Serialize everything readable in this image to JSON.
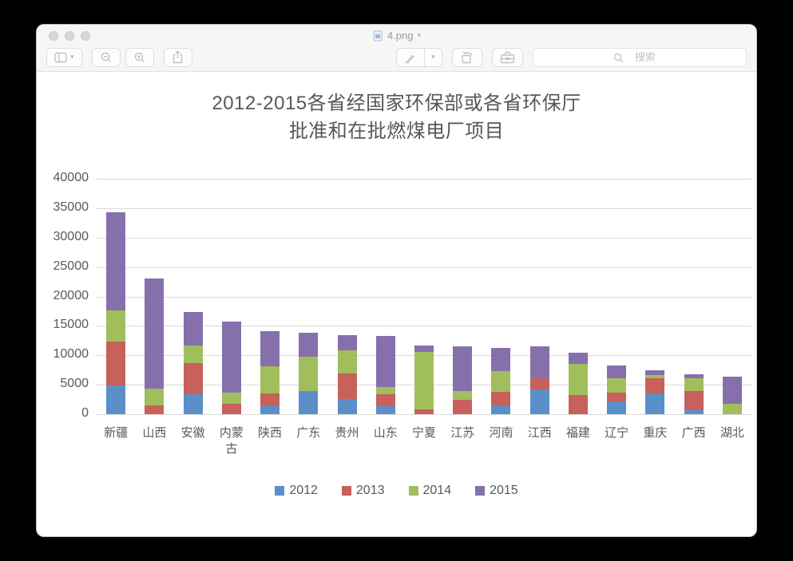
{
  "window": {
    "title": "4.png",
    "traffic_lights": {
      "close": "",
      "minimize": "",
      "zoom": ""
    },
    "toolbar": {
      "search_placeholder": "搜索"
    }
  },
  "chart_data": {
    "type": "bar",
    "stacked": true,
    "title": "2012-2015各省经国家环保部或各省环保厅批准和在批燃煤电厂项目",
    "title_line1": "2012-2015各省经国家环保部或各省环保厅",
    "title_line2": "批准和在批燃煤电厂项目",
    "categories": [
      "新疆",
      "山西",
      "安徽",
      "内蒙古",
      "陕西",
      "广东",
      "贵州",
      "山东",
      "宁夏",
      "江苏",
      "河南",
      "江西",
      "福建",
      "辽宁",
      "重庆",
      "广西",
      "湖北"
    ],
    "series": [
      {
        "name": "2012",
        "color": "#5B8FC9",
        "values": [
          4900,
          0,
          3400,
          0,
          1500,
          3900,
          2600,
          1400,
          0,
          0,
          1500,
          4200,
          0,
          2200,
          3500,
          700,
          0
        ]
      },
      {
        "name": "2013",
        "color": "#C8605B",
        "values": [
          7400,
          1500,
          5300,
          1800,
          2000,
          0,
          4300,
          2000,
          800,
          2400,
          2300,
          1900,
          3300,
          1500,
          2600,
          3300,
          0
        ]
      },
      {
        "name": "2014",
        "color": "#A0BF5C",
        "values": [
          5400,
          2800,
          3000,
          1900,
          4600,
          5900,
          4000,
          1200,
          9800,
          1500,
          3500,
          0,
          5200,
          2400,
          600,
          2100,
          1700
        ]
      },
      {
        "name": "2015",
        "color": "#8570AC",
        "values": [
          16600,
          18800,
          5700,
          12000,
          6000,
          4000,
          2500,
          8700,
          1000,
          7600,
          4000,
          5400,
          2000,
          2200,
          700,
          700,
          4700
        ]
      }
    ],
    "ylim": [
      0,
      40000
    ],
    "yticks": [
      0,
      5000,
      10000,
      15000,
      20000,
      25000,
      30000,
      35000,
      40000
    ],
    "grid": true,
    "legend_position": "bottom",
    "text_color": "#595959",
    "gridline_color": "#d9d9d9"
  }
}
